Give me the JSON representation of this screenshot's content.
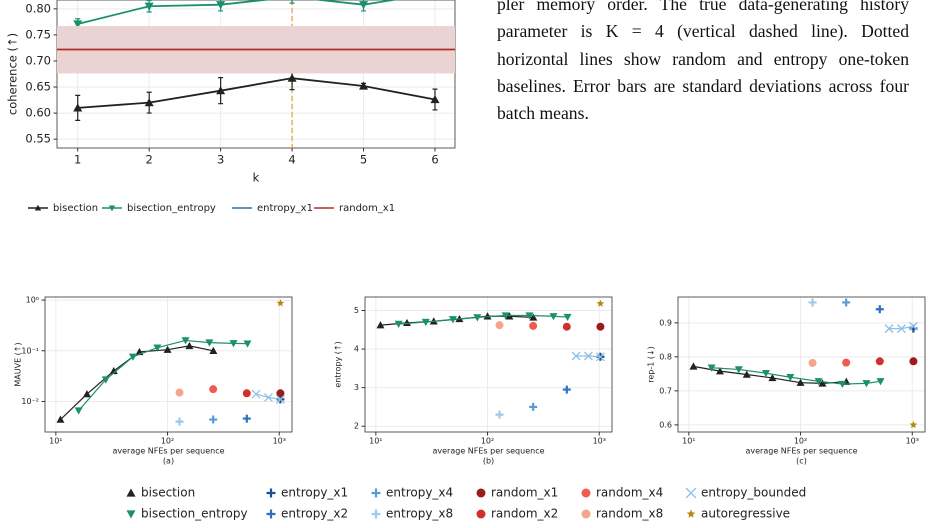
{
  "paragraph": "pler memory order. The true data-generating history parameter is K = 4 (vertical dashed line). Dotted horizontal lines show random and entropy one-token baselines. Error bars are standard deviations across four batch means.",
  "chart_data": [
    {
      "type": "line",
      "xlabel": "k",
      "ylabel": "coherence (↑)",
      "x": [
        1,
        2,
        3,
        4,
        5,
        6
      ],
      "xlim": [
        0.71,
        6.28
      ],
      "xticks": [
        1,
        2,
        3,
        4,
        5,
        6
      ],
      "ylim": [
        0.533,
        0.817
      ],
      "yticks": [
        0.55,
        {
          "value": 0.6,
          "label": "0.60"
        },
        0.65,
        {
          "value": 0.7,
          "label": "0.70"
        },
        0.75,
        {
          "value": 0.8,
          "label": "0.80"
        }
      ],
      "grid": true,
      "legend": "below",
      "vline": {
        "value": 4,
        "color": "#e8a838"
      },
      "series": [
        {
          "name": "bisection",
          "color": "#222222",
          "marker": "triangle-up",
          "values": [
            0.61,
            0.62,
            0.643,
            0.667,
            0.652,
            0.626
          ],
          "errors": [
            0.024,
            0.02,
            0.025,
            0.022,
            0.005,
            0.02
          ]
        },
        {
          "name": "bisection_entropy",
          "color": "#1b8f6f",
          "marker": "triangle-down",
          "values": [
            0.771,
            0.805,
            0.808,
            0.823,
            0.808,
            0.83
          ],
          "errors": [
            0.01,
            0.011,
            0.012,
            0.012,
            0.012,
            0.01
          ]
        },
        {
          "name": "entropy_x1",
          "color": "#2f6fa8"
        },
        {
          "name": "random_x1",
          "color": "#b5282e",
          "value": 0.722,
          "band": [
            0.676,
            0.767
          ],
          "band_color": "#ecd3d3"
        }
      ]
    },
    {
      "type": "line",
      "xlabel": "average NFEs per sequence",
      "sublabel": "(a)",
      "ylabel": "MAUVE (↑)",
      "xlog": true,
      "ylog": true,
      "grid": true,
      "legend": "below",
      "xlim": [
        8,
        1300
      ],
      "xticks": [
        {
          "value": 10,
          "label": "10¹"
        },
        {
          "value": 100,
          "label": "10²"
        },
        {
          "value": 1000,
          "label": "10³"
        }
      ],
      "ylim": [
        0.0025,
        1.15
      ],
      "yticks": [
        {
          "value": 0.01,
          "label": "10⁻²"
        },
        {
          "value": 0.1,
          "label": "10⁻¹"
        },
        {
          "value": 1,
          "label": "10⁰"
        }
      ],
      "series": [
        {
          "name": "bisection",
          "color": "#222222",
          "marker": "triangle-up",
          "x": [
            11,
            19,
            33,
            56,
            100,
            157,
            257
          ],
          "values": [
            0.0044,
            0.014,
            0.04,
            0.095,
            0.105,
            0.125,
            0.1
          ]
        },
        {
          "name": "bisection_entropy",
          "color": "#1b8f6f",
          "marker": "triangle-down",
          "x": [
            16,
            28,
            49,
            81,
            145,
            237,
            389,
            520
          ],
          "values": [
            0.0066,
            0.027,
            0.076,
            0.115,
            0.16,
            0.145,
            0.14,
            0.138
          ]
        },
        {
          "name": "entropy_x1",
          "color": "#1f4e96",
          "marker": "plus",
          "x": [
            1024
          ],
          "values": [
            0.011
          ]
        },
        {
          "name": "entropy_x2",
          "color": "#2f6fbf",
          "marker": "plus",
          "x": [
            512
          ],
          "values": [
            0.0046
          ]
        },
        {
          "name": "entropy_x4",
          "color": "#5b9bd5",
          "marker": "plus",
          "x": [
            256
          ],
          "values": [
            0.0044
          ]
        },
        {
          "name": "entropy_x8",
          "color": "#9ec9ea",
          "marker": "plus",
          "x": [
            128
          ],
          "values": [
            0.004
          ]
        },
        {
          "name": "random_x1",
          "color": "#9b1b1e",
          "marker": "circle",
          "x": [
            1024
          ],
          "values": [
            0.0145
          ]
        },
        {
          "name": "random_x2",
          "color": "#d0312d",
          "marker": "circle",
          "x": [
            512
          ],
          "values": [
            0.0145
          ]
        },
        {
          "name": "random_x4",
          "color": "#ef5b50",
          "marker": "circle",
          "x": [
            256
          ],
          "values": [
            0.0175
          ]
        },
        {
          "name": "random_x8",
          "color": "#f4a58a",
          "marker": "circle",
          "x": [
            128
          ],
          "values": [
            0.015
          ]
        },
        {
          "name": "entropy_bounded",
          "color": "#8fc1e6",
          "marker": "x",
          "x": [
            620,
            800,
            1024
          ],
          "values": [
            0.014,
            0.012,
            0.011
          ]
        },
        {
          "name": "autoregressive",
          "color": "#b8860b",
          "marker": "star",
          "x": [
            1024
          ],
          "values": [
            0.87
          ]
        }
      ]
    },
    {
      "type": "line",
      "xlabel": "average NFEs per sequence",
      "sublabel": "(b)",
      "ylabel": "entropy (↑)",
      "xlog": true,
      "grid": true,
      "xlim": [
        8,
        1300
      ],
      "xticks": [
        {
          "value": 10,
          "label": "10¹"
        },
        {
          "value": 100,
          "label": "10²"
        },
        {
          "value": 1000,
          "label": "10³"
        }
      ],
      "ylim": [
        1.85,
        5.35
      ],
      "yticks": [
        2,
        3,
        4,
        5
      ],
      "series": [
        {
          "color": "#222222",
          "marker": "triangle-up",
          "x": [
            11,
            19,
            33,
            56,
            100,
            157,
            257
          ],
          "values": [
            4.62,
            4.68,
            4.72,
            4.78,
            4.85,
            4.85,
            4.82
          ]
        },
        {
          "color": "#1b8f6f",
          "marker": "triangle-down",
          "x": [
            16,
            28,
            49,
            81,
            145,
            237,
            389,
            520
          ],
          "values": [
            4.65,
            4.7,
            4.77,
            4.82,
            4.87,
            4.87,
            4.85,
            4.83
          ]
        },
        {
          "color": "#1f4e96",
          "marker": "plus",
          "x": [
            1024
          ],
          "values": [
            3.8
          ]
        },
        {
          "color": "#2f6fbf",
          "marker": "plus",
          "x": [
            512
          ],
          "values": [
            2.95
          ]
        },
        {
          "color": "#5b9bd5",
          "marker": "plus",
          "x": [
            256
          ],
          "values": [
            2.5
          ]
        },
        {
          "color": "#9ec9ea",
          "marker": "plus",
          "x": [
            128
          ],
          "values": [
            2.3
          ]
        },
        {
          "color": "#9b1b1e",
          "marker": "circle",
          "x": [
            1024
          ],
          "values": [
            4.58
          ]
        },
        {
          "color": "#d0312d",
          "marker": "circle",
          "x": [
            512
          ],
          "values": [
            4.58
          ]
        },
        {
          "color": "#ef5b50",
          "marker": "circle",
          "x": [
            256
          ],
          "values": [
            4.6
          ]
        },
        {
          "color": "#f4a58a",
          "marker": "circle",
          "x": [
            128
          ],
          "values": [
            4.62
          ]
        },
        {
          "color": "#8fc1e6",
          "marker": "x",
          "x": [
            620,
            800,
            1024
          ],
          "values": [
            3.82,
            3.82,
            3.8
          ]
        },
        {
          "color": "#b8860b",
          "marker": "star",
          "x": [
            1024
          ],
          "values": [
            5.18
          ]
        }
      ]
    },
    {
      "type": "line",
      "xlabel": "average NFEs per sequence",
      "sublabel": "(c)",
      "ylabel": "rep-1 (↓)",
      "xlog": true,
      "grid": true,
      "xlim": [
        8,
        1300
      ],
      "xticks": [
        {
          "value": 10,
          "label": "10¹"
        },
        {
          "value": 100,
          "label": "10²"
        },
        {
          "value": 1000,
          "label": "10³"
        }
      ],
      "ylim": [
        0.579,
        0.976
      ],
      "yticks": [
        0.6,
        0.7,
        0.8,
        0.9
      ],
      "series": [
        {
          "color": "#222222",
          "marker": "triangle-up",
          "x": [
            11,
            19,
            33,
            56,
            100,
            157,
            257
          ],
          "values": [
            0.772,
            0.758,
            0.748,
            0.738,
            0.724,
            0.722,
            0.727
          ]
        },
        {
          "color": "#1b8f6f",
          "marker": "triangle-down",
          "x": [
            16,
            28,
            49,
            81,
            145,
            237,
            389,
            520
          ],
          "values": [
            0.768,
            0.763,
            0.752,
            0.74,
            0.728,
            0.72,
            0.722,
            0.728
          ]
        },
        {
          "color": "#1f4e96",
          "marker": "plus",
          "x": [
            1024
          ],
          "values": [
            0.883
          ]
        },
        {
          "color": "#2f6fbf",
          "marker": "plus",
          "x": [
            512
          ],
          "values": [
            0.94
          ]
        },
        {
          "color": "#5b9bd5",
          "marker": "plus",
          "x": [
            256
          ],
          "values": [
            0.96
          ]
        },
        {
          "color": "#9ec9ea",
          "marker": "plus",
          "x": [
            128
          ],
          "values": [
            0.96
          ]
        },
        {
          "color": "#9b1b1e",
          "marker": "circle",
          "x": [
            1024
          ],
          "values": [
            0.787
          ]
        },
        {
          "color": "#d0312d",
          "marker": "circle",
          "x": [
            512
          ],
          "values": [
            0.787
          ]
        },
        {
          "color": "#ef5b50",
          "marker": "circle",
          "x": [
            256
          ],
          "values": [
            0.783
          ]
        },
        {
          "color": "#f4a58a",
          "marker": "circle",
          "x": [
            128
          ],
          "values": [
            0.782
          ]
        },
        {
          "color": "#8fc1e6",
          "marker": "x",
          "x": [
            620,
            800,
            1024
          ],
          "values": [
            0.883,
            0.883,
            0.89
          ]
        },
        {
          "color": "#b8860b",
          "marker": "star",
          "x": [
            1024
          ],
          "values": [
            0.6
          ]
        }
      ]
    }
  ]
}
